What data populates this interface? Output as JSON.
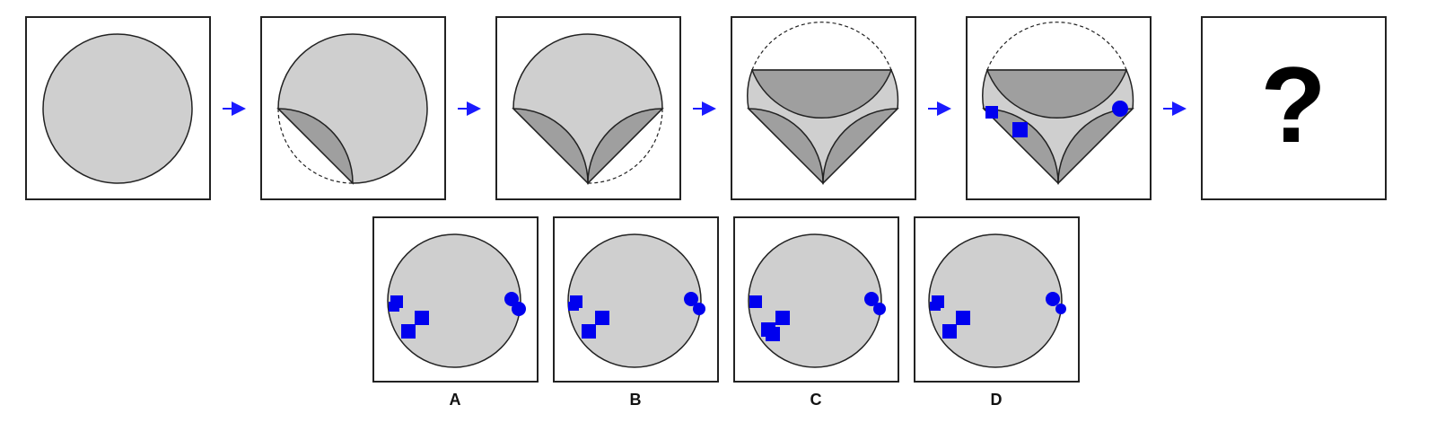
{
  "colors": {
    "paper_fill": "#cfcfcf",
    "fold_fill": "#9f9f9f",
    "punch": "#0000ee",
    "arrow": "#1a1aff",
    "frame": "#222222"
  },
  "sequence": [
    {
      "step": 1,
      "folds": 0,
      "punches": []
    },
    {
      "step": 2,
      "folds": 1,
      "punches": []
    },
    {
      "step": 3,
      "folds": 2,
      "punches": []
    },
    {
      "step": 4,
      "folds": 3,
      "punches": []
    },
    {
      "step": 5,
      "folds": 3,
      "punches": [
        "square",
        "square",
        "circle"
      ]
    },
    {
      "step": 6,
      "unknown": true
    }
  ],
  "question_mark": "?",
  "options": [
    {
      "label": "A"
    },
    {
      "label": "B"
    },
    {
      "label": "C"
    },
    {
      "label": "D"
    }
  ]
}
